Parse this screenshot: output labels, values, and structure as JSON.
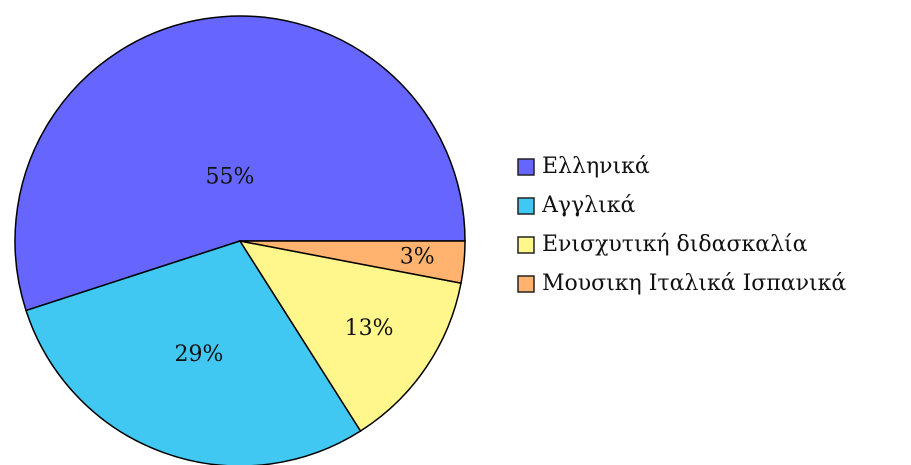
{
  "chart_data": {
    "type": "pie",
    "categories": [
      "Ελληνικά",
      "Αγγλικά",
      "Ενισχυτική διδασκαλία",
      "Μουσικη Ιταλικά Ισπανικά"
    ],
    "values": [
      55,
      29,
      13,
      3
    ],
    "value_labels": [
      "55%",
      "29%",
      "13%",
      "3%"
    ],
    "colors": [
      "#6666ff",
      "#41c8f2",
      "#fff68c",
      "#ffb36e"
    ],
    "legend": "right"
  }
}
